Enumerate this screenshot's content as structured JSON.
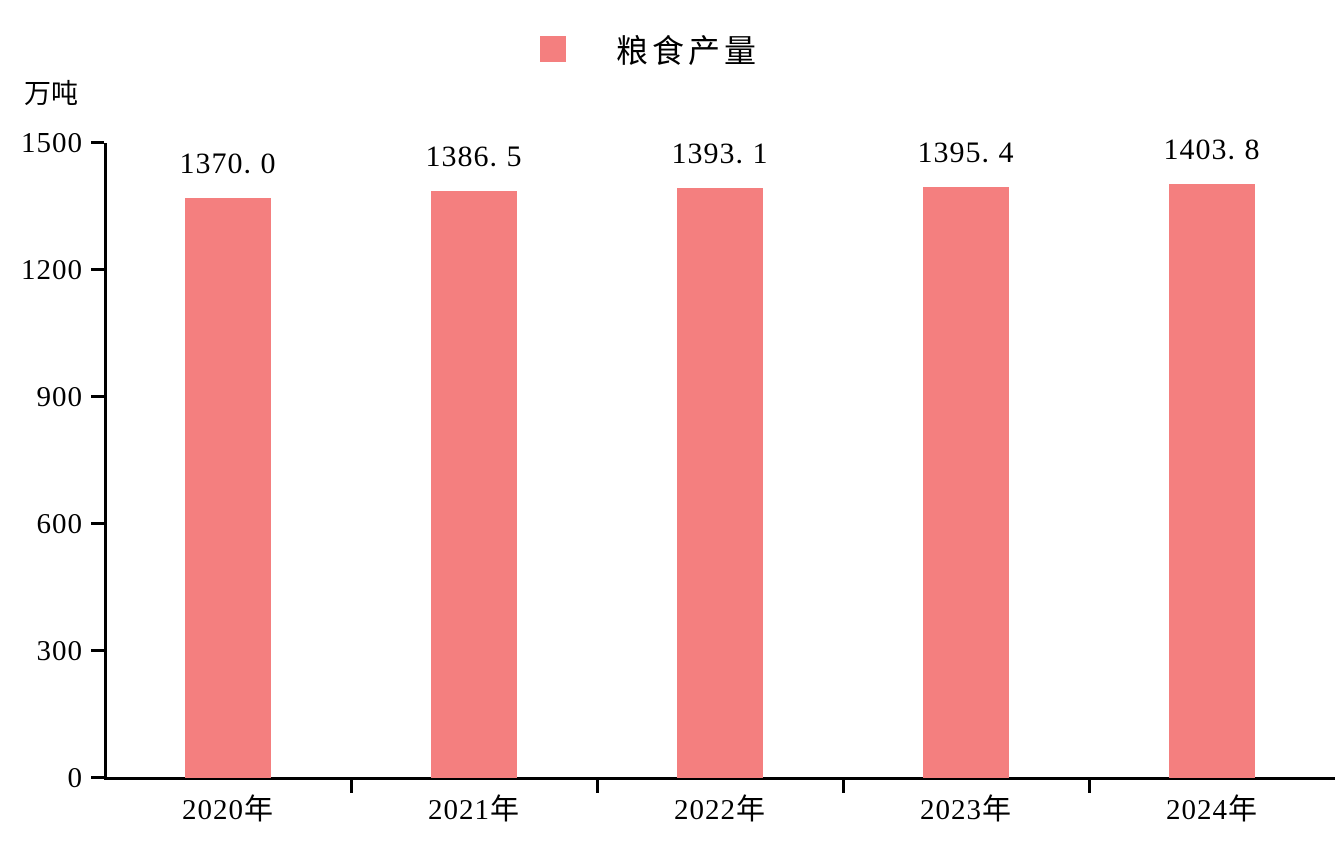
{
  "chart_data": {
    "type": "bar",
    "title": "",
    "legend_label": "粮食产量",
    "legend_position": "top-center",
    "unit_label": "万吨",
    "xlabel": "",
    "ylabel": "万吨",
    "categories": [
      "2020年",
      "2021年",
      "2022年",
      "2023年",
      "2024年"
    ],
    "values": [
      1370.0,
      1386.5,
      1393.1,
      1395.4,
      1403.8
    ],
    "value_labels": [
      "1370. 0",
      "1386. 5",
      "1393. 1",
      "1395. 4",
      "1403. 8"
    ],
    "y_ticks": [
      0,
      300,
      600,
      900,
      1200,
      1500
    ],
    "ylim": [
      0,
      1500
    ],
    "grid": false,
    "bar_color": "#F47F7F",
    "axis_color": "#000000",
    "background_color": "#FFFFFF"
  }
}
